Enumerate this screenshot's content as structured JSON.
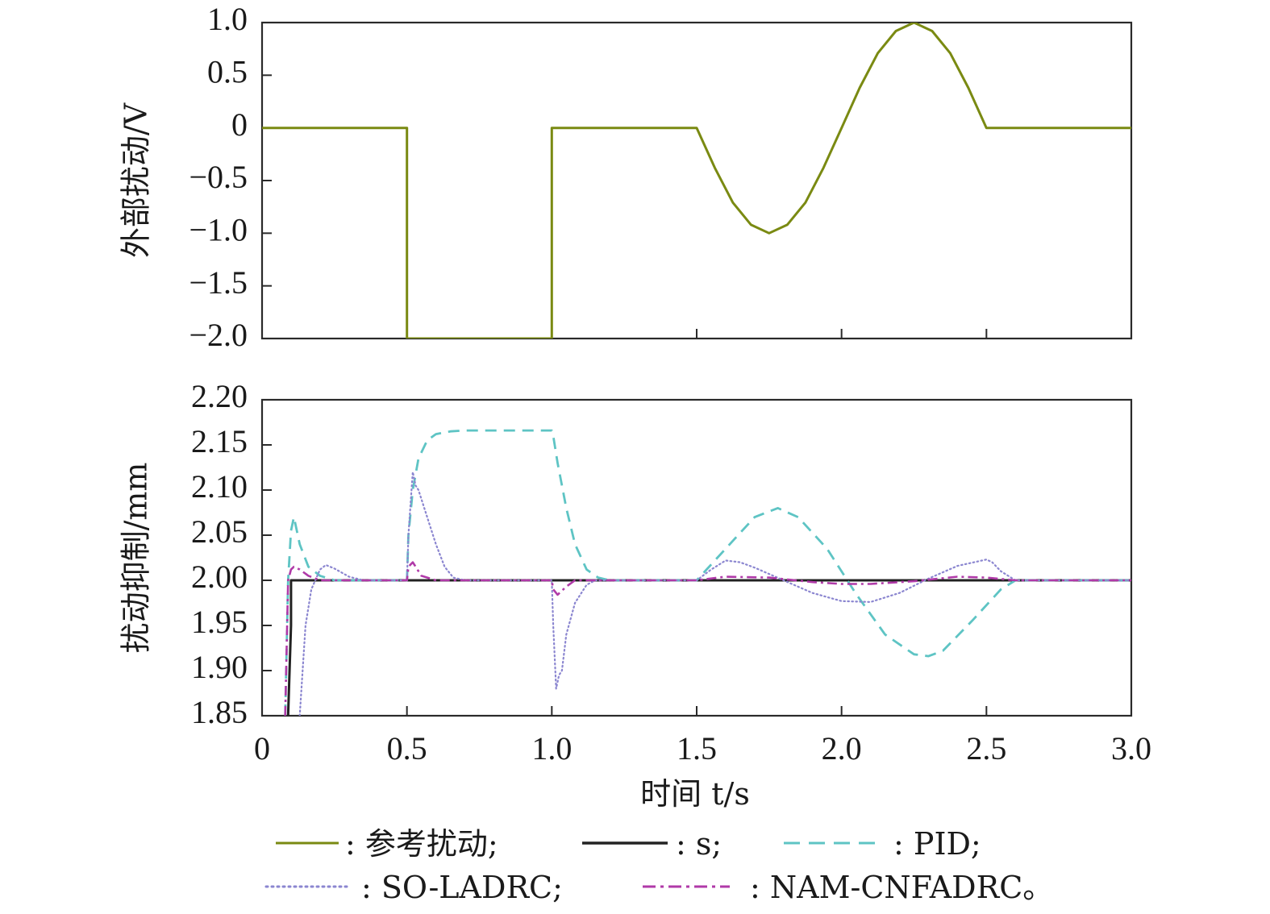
{
  "colors": {
    "reference": "#7a8a12",
    "s": "#222222",
    "pid": "#5ec4c4",
    "so_ladrc": "#8b86d0",
    "nam_cnfadrc": "#b03aa8"
  },
  "chart_data": [
    {
      "type": "line",
      "ylabel": "外部扰动/V",
      "xlim": [
        0,
        3.0
      ],
      "ylim": [
        -2.0,
        1.0
      ],
      "yticks": [
        "1.0",
        "0.5",
        "0",
        "−0.5",
        "−1.0",
        "−1.5",
        "−2.0"
      ],
      "ytick_values": [
        1.0,
        0.5,
        0,
        -0.5,
        -1.0,
        -1.5,
        -2.0
      ],
      "x_tick_values": [
        0,
        0.5,
        1.0,
        1.5,
        2.0,
        2.5,
        3.0
      ],
      "series": [
        {
          "name": "参考扰动",
          "style": "solid",
          "x": [
            0,
            0.5,
            0.5,
            1.0,
            1.0,
            1.5,
            1.5625,
            1.625,
            1.6875,
            1.75,
            1.8125,
            1.875,
            1.9375,
            2.0,
            2.0625,
            2.125,
            2.1875,
            2.25,
            2.3125,
            2.375,
            2.4375,
            2.5,
            3.0
          ],
          "y": [
            0,
            0,
            -2.0,
            -2.0,
            0,
            0,
            -0.38,
            -0.71,
            -0.92,
            -1.0,
            -0.92,
            -0.71,
            -0.38,
            0,
            0.38,
            0.71,
            0.92,
            1.0,
            0.92,
            0.71,
            0.38,
            0,
            0
          ]
        }
      ]
    },
    {
      "type": "line",
      "ylabel": "扰动抑制/mm",
      "xlabel": "时间 t/s",
      "xlim": [
        0,
        3.0
      ],
      "ylim": [
        1.85,
        2.2
      ],
      "yticks": [
        "2.20",
        "2.15",
        "2.10",
        "2.05",
        "2.00",
        "1.95",
        "1.90",
        "1.85"
      ],
      "ytick_values": [
        2.2,
        2.15,
        2.1,
        2.05,
        2.0,
        1.95,
        1.9,
        1.85
      ],
      "xticks": [
        "0",
        "0.5",
        "1.0",
        "1.5",
        "2.0",
        "2.5",
        "3.0"
      ],
      "x_tick_values": [
        0,
        0.5,
        1.0,
        1.5,
        2.0,
        2.5,
        3.0
      ],
      "series": [
        {
          "name": "s",
          "style": "solid",
          "x": [
            0.09,
            0.1,
            0.1,
            3.0
          ],
          "y": [
            1.85,
            1.95,
            2.0,
            2.0
          ]
        },
        {
          "name": "PID",
          "style": "dashed",
          "x": [
            0.08,
            0.09,
            0.1,
            0.11,
            0.13,
            0.16,
            0.2,
            0.25,
            0.3,
            0.5,
            0.505,
            0.52,
            0.54,
            0.57,
            0.6,
            0.65,
            0.7,
            0.8,
            0.9,
            1.0,
            1.005,
            1.02,
            1.05,
            1.08,
            1.12,
            1.16,
            1.2,
            1.5,
            1.6,
            1.7,
            1.78,
            1.85,
            1.95,
            2.05,
            2.15,
            2.25,
            2.3,
            2.35,
            2.45,
            2.55,
            2.6,
            3.0
          ],
          "y": [
            1.85,
            2.0,
            2.055,
            2.07,
            2.04,
            2.015,
            2.005,
            2.0,
            2.0,
            2.0,
            2.05,
            2.1,
            2.135,
            2.155,
            2.162,
            2.165,
            2.166,
            2.166,
            2.166,
            2.166,
            2.16,
            2.13,
            2.08,
            2.04,
            2.012,
            2.003,
            2.0,
            2.0,
            2.035,
            2.07,
            2.08,
            2.07,
            2.035,
            1.985,
            1.94,
            1.918,
            1.916,
            1.922,
            1.955,
            1.99,
            2.0,
            2.0
          ]
        },
        {
          "name": "SO-LADRC",
          "style": "dotted",
          "x": [
            0.13,
            0.14,
            0.15,
            0.17,
            0.2,
            0.22,
            0.25,
            0.3,
            0.35,
            0.5,
            0.505,
            0.52,
            0.53,
            0.54,
            0.55,
            0.57,
            0.6,
            0.63,
            0.66,
            0.7,
            1.0,
            1.005,
            1.015,
            1.025,
            1.035,
            1.05,
            1.08,
            1.12,
            1.15,
            1.5,
            1.55,
            1.6,
            1.65,
            1.7,
            1.8,
            1.9,
            2.0,
            2.1,
            2.2,
            2.3,
            2.4,
            2.5,
            2.52,
            2.55,
            2.6,
            3.0
          ],
          "y": [
            1.85,
            1.9,
            1.95,
            1.99,
            2.012,
            2.017,
            2.013,
            2.004,
            2.0,
            2.0,
            2.05,
            2.12,
            2.105,
            2.1,
            2.09,
            2.07,
            2.04,
            2.015,
            2.003,
            2.0,
            2.0,
            1.95,
            1.88,
            1.895,
            1.9,
            1.94,
            1.975,
            1.995,
            2.0,
            2.0,
            2.012,
            2.022,
            2.02,
            2.014,
            2.0,
            1.986,
            1.977,
            1.976,
            1.986,
            2.002,
            2.016,
            2.023,
            2.02,
            2.01,
            2.0,
            2.0
          ]
        },
        {
          "name": "NAM-CNFADRC",
          "style": "dashdot",
          "x": [
            0.08,
            0.09,
            0.1,
            0.11,
            0.13,
            0.16,
            0.2,
            0.5,
            0.505,
            0.52,
            0.55,
            0.6,
            1.0,
            1.005,
            1.02,
            1.05,
            1.08,
            1.5,
            1.6,
            1.75,
            1.9,
            2.0,
            2.1,
            2.25,
            2.4,
            2.5,
            2.6,
            3.0
          ],
          "y": [
            1.85,
            2.0,
            2.012,
            2.015,
            2.012,
            2.005,
            2.0,
            2.0,
            2.015,
            2.02,
            2.005,
            2.0,
            2.0,
            1.99,
            1.984,
            1.993,
            2.0,
            2.0,
            2.004,
            2.003,
            1.998,
            1.996,
            1.996,
            1.999,
            2.004,
            2.003,
            2.0,
            2.0
          ]
        }
      ]
    }
  ],
  "legend": {
    "items": [
      {
        "label": ": 参考扰动;"
      },
      {
        "label": ": s;"
      },
      {
        "label": ": PID;"
      },
      {
        "label": ": SO-LADRC;"
      },
      {
        "label": ": NAM-CNFADRC。"
      }
    ]
  }
}
